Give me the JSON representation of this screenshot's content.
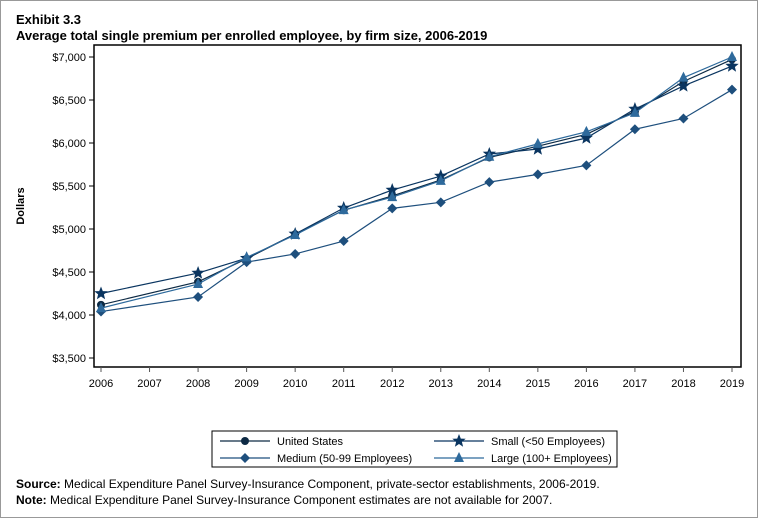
{
  "exhibit": "Exhibit 3.3",
  "source_label": "Source:",
  "source_text": "Medical Expenditure Panel Survey-Insurance Component, private-sector establishments, 2006-2019.",
  "note_label": "Note:",
  "note_text": "Medical Expenditure Panel Survey-Insurance Component estimates are not available for 2007.",
  "chart_data": {
    "type": "line",
    "title": "Average total single premium per enrolled employee, by firm size, 2006-2019",
    "xlabel": "",
    "ylabel": "Dollars",
    "xlim": [
      2006,
      2019
    ],
    "ylim": [
      3500,
      7000
    ],
    "x_ticks": [
      2006,
      2007,
      2008,
      2009,
      2010,
      2011,
      2012,
      2013,
      2014,
      2015,
      2016,
      2017,
      2018,
      2019
    ],
    "y_ticks": [
      3500,
      4000,
      4500,
      5000,
      5500,
      6000,
      6500,
      7000
    ],
    "y_tick_labels": [
      "$3,500",
      "$4,000",
      "$4,500",
      "$5,000",
      "$5,500",
      "$6,000",
      "$6,500",
      "$7,000"
    ],
    "grid": false,
    "legend_placement": "bottom",
    "x": [
      2006,
      2008,
      2009,
      2010,
      2011,
      2012,
      2013,
      2014,
      2015,
      2016,
      2017,
      2018,
      2019
    ],
    "series": [
      {
        "name": "United States",
        "marker": "circle",
        "color": "#0d2a44",
        "values": [
          4118,
          4386,
          4655,
          4940,
          5218,
          5384,
          5571,
          5832,
          5963,
          6101,
          6368,
          6715,
          6972
        ]
      },
      {
        "name": "Small (<50 Employees)",
        "marker": "star",
        "color": "#0a3560",
        "values": [
          4250,
          4488,
          4660,
          4942,
          5244,
          5453,
          5616,
          5872,
          5930,
          6058,
          6395,
          6663,
          6895
        ]
      },
      {
        "name": "Medium (50-99 Employees)",
        "marker": "diamond",
        "color": "#1e4f7d",
        "values": [
          4040,
          4210,
          4615,
          4710,
          4860,
          5240,
          5310,
          5545,
          5635,
          5740,
          6160,
          6285,
          6620
        ]
      },
      {
        "name": "Large (100+ Employees)",
        "marker": "triangle",
        "color": "#2e6a9c",
        "values": [
          4080,
          4360,
          4670,
          4930,
          5220,
          5370,
          5560,
          5840,
          5990,
          6130,
          6350,
          6760,
          7000
        ]
      }
    ]
  }
}
